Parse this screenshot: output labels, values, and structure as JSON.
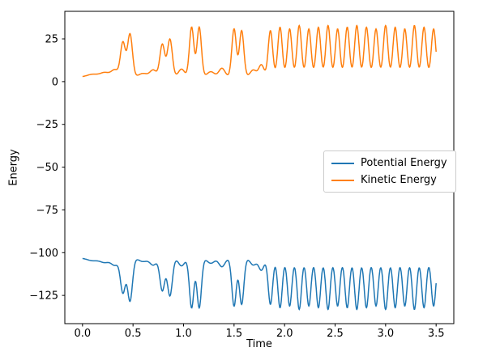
{
  "figure": {
    "background": "#ffffff"
  },
  "chart_data": {
    "type": "line",
    "title": "",
    "xlabel": "Time",
    "ylabel": "Energy",
    "xlim": [
      -0.175,
      3.675
    ],
    "ylim": [
      -141.5,
      41.1
    ],
    "xticks": [
      0.0,
      0.5,
      1.0,
      1.5,
      2.0,
      2.5,
      3.0,
      3.5
    ],
    "xtick_labels": [
      "0.0",
      "0.5",
      "1.0",
      "1.5",
      "2.0",
      "2.5",
      "3.0",
      "3.5"
    ],
    "yticks": [
      25,
      0,
      -25,
      -50,
      -75,
      -100,
      -125
    ],
    "ytick_labels": [
      "25",
      "0",
      "−25",
      "−50",
      "−75",
      "−100",
      "−125"
    ],
    "grid": false,
    "legend": {
      "position": "center-right",
      "entries": [
        {
          "label": "Potential Energy",
          "color": "#1f77b4"
        },
        {
          "label": "Kinetic Energy",
          "color": "#ff7f0e"
        }
      ]
    },
    "total_energy": -100.4,
    "series": [
      {
        "name": "Potential Energy",
        "color": "#1f77b4",
        "baseline": -103.2,
        "min": -133.2,
        "derivation": "total_energy_minus_kinetic"
      },
      {
        "name": "Kinetic Energy",
        "color": "#ff7f0e",
        "baseline": 2.8,
        "max": 32.8
      }
    ],
    "t_range": [
      0.0,
      3.5
    ],
    "kinetic_peaks": [
      [
        0.1,
        1.5,
        0.05
      ],
      [
        0.22,
        2.5,
        0.045
      ],
      [
        0.32,
        4.0,
        0.035
      ],
      [
        0.4,
        20.0,
        0.024
      ],
      [
        0.47,
        25.0,
        0.024
      ],
      [
        0.6,
        2.0,
        0.04
      ],
      [
        0.7,
        4.0,
        0.032
      ],
      [
        0.79,
        19.0,
        0.024
      ],
      [
        0.865,
        22.0,
        0.024
      ],
      [
        0.98,
        4.5,
        0.03
      ],
      [
        1.08,
        29.0,
        0.022
      ],
      [
        1.155,
        29.0,
        0.022
      ],
      [
        1.27,
        3.0,
        0.035
      ],
      [
        1.38,
        5.0,
        0.03
      ],
      [
        1.5,
        28.0,
        0.022
      ],
      [
        1.575,
        27.0,
        0.022
      ],
      [
        1.69,
        4.0,
        0.03
      ],
      [
        1.77,
        7.0,
        0.026
      ],
      [
        1.86,
        27.0,
        0.022
      ],
      [
        1.955,
        29.0,
        0.022
      ],
      [
        2.05,
        28.0,
        0.022
      ],
      [
        2.145,
        30.0,
        0.022
      ],
      [
        2.24,
        28.0,
        0.022
      ],
      [
        2.335,
        29.0,
        0.022
      ],
      [
        2.43,
        30.0,
        0.022
      ],
      [
        2.525,
        28.0,
        0.022
      ],
      [
        2.62,
        29.0,
        0.022
      ],
      [
        2.715,
        30.0,
        0.022
      ],
      [
        2.81,
        29.0,
        0.022
      ],
      [
        2.905,
        28.0,
        0.022
      ],
      [
        3.0,
        30.0,
        0.022
      ],
      [
        3.095,
        29.0,
        0.022
      ],
      [
        3.19,
        28.0,
        0.022
      ],
      [
        3.285,
        30.0,
        0.022
      ],
      [
        3.38,
        29.0,
        0.022
      ],
      [
        3.475,
        28.0,
        0.022
      ]
    ]
  }
}
